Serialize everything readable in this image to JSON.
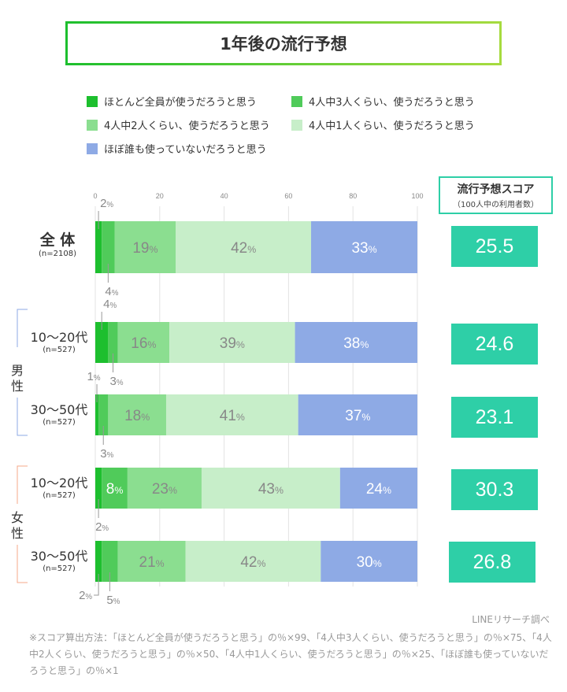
{
  "title": "1年後の流行予想",
  "legend": [
    {
      "label": "ほとんど全員が使うだろうと思う",
      "color": "#1dbf2e"
    },
    {
      "label": "4人中3人くらい、使うだろうと思う",
      "color": "#50cb5a"
    },
    {
      "label": "4人中2人くらい、使うだろうと思う",
      "color": "#8bde90"
    },
    {
      "label": "4人中1人くらい、使うだろうと思う",
      "color": "#c7eec9"
    },
    {
      "label": "ほぼ誰も使っていないだろうと思う",
      "color": "#8eaae5"
    }
  ],
  "score_header": {
    "title": "流行予想スコア",
    "subtitle": "（100人中の利用者数）"
  },
  "groups": [
    {
      "label": "男性",
      "color": "#8eaae5"
    },
    {
      "label": "女性",
      "color": "#f5a98a"
    }
  ],
  "chart_data": {
    "type": "bar",
    "orientation": "horizontal",
    "stacked": true,
    "xlim": [
      0,
      100
    ],
    "xticks": [
      "0",
      "20",
      "40",
      "60",
      "80",
      "100"
    ],
    "grid": true,
    "unit": "%",
    "categories": [
      {
        "label": "全 体",
        "n": "(n=2108)"
      },
      {
        "label": "10〜20代",
        "n": "(n=527)"
      },
      {
        "label": "30〜50代",
        "n": "(n=527)"
      },
      {
        "label": "10〜20代",
        "n": "(n=527)"
      },
      {
        "label": "30〜50代",
        "n": "(n=527)"
      }
    ],
    "series": [
      {
        "name": "ほとんど全員が使うだろうと思う",
        "values": [
          2,
          4,
          1,
          2,
          2
        ]
      },
      {
        "name": "4人中3人くらい、使うだろうと思う",
        "values": [
          4,
          3,
          3,
          8,
          5
        ]
      },
      {
        "name": "4人中2人くらい、使うだろうと思う",
        "values": [
          19,
          16,
          18,
          23,
          21
        ]
      },
      {
        "name": "4人中1人くらい、使うだろうと思う",
        "values": [
          42,
          39,
          41,
          43,
          42
        ]
      },
      {
        "name": "ほぼ誰も使っていないだろうと思う",
        "values": [
          33,
          38,
          37,
          24,
          30
        ]
      }
    ],
    "scores": [
      "25.5",
      "24.6",
      "23.1",
      "30.3",
      "26.8"
    ]
  },
  "source": "LINEリサーチ調べ",
  "note": "※スコア算出方法：「ほとんど全員が使うだろうと思う」の％×99、「4人中3人くらい、使うだろうと思う」の％×75、「4人中2人くらい、使うだろうと思う」の％×50、「4人中1人くらい、使うだろうと思う」の％×25、「ほぼ誰も使っていないだろうと思う」の％×1"
}
